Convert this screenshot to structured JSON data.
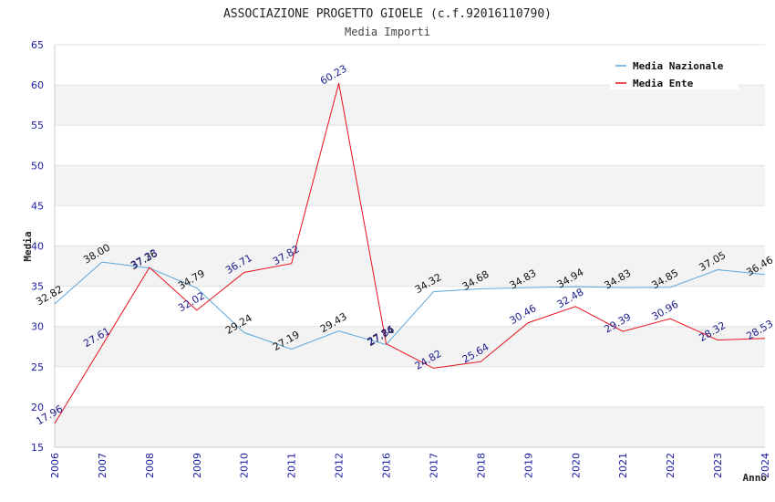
{
  "chart_data": {
    "type": "line",
    "title": "ASSOCIAZIONE PROGETTO GIOELE (c.f.92016110790)",
    "subtitle": "Media Importi",
    "ylabel": "Media",
    "xlabel": "Anno",
    "ylim": [
      15,
      65
    ],
    "yticks": [
      15,
      20,
      25,
      30,
      35,
      40,
      45,
      50,
      55,
      60,
      65
    ],
    "categories": [
      "2006",
      "2007",
      "2008",
      "2009",
      "2010",
      "2011",
      "2012",
      "2016",
      "2017",
      "2018",
      "2019",
      "2020",
      "2021",
      "2022",
      "2023",
      "2024"
    ],
    "legend_position": "top-right",
    "series": [
      {
        "name": "Media Nazionale",
        "color": "#5aa5dc",
        "values": [
          32.82,
          38.0,
          37.26,
          34.79,
          29.24,
          27.19,
          29.43,
          27.74,
          34.32,
          34.68,
          34.83,
          34.94,
          34.83,
          34.85,
          37.05,
          36.46
        ],
        "labels": [
          "32.82",
          "38.00",
          "37.26",
          "34.79",
          "29.24",
          "27.19",
          "29.43",
          "27.74",
          "34.32",
          "34.68",
          "34.83",
          "34.94",
          "34.83",
          "34.85",
          "37.05",
          "36.46"
        ]
      },
      {
        "name": "Media Ente",
        "color": "#e8101c",
        "values": [
          17.96,
          27.61,
          37.33,
          32.02,
          36.71,
          37.82,
          60.23,
          27.86,
          24.82,
          25.64,
          30.46,
          32.48,
          29.39,
          30.96,
          28.32,
          28.53
        ],
        "labels": [
          "17.96",
          "27.61",
          "37.33",
          "32.02",
          "36.71",
          "37.82",
          "60.23",
          "27.86",
          "24.82",
          "25.64",
          "30.46",
          "32.48",
          "29.39",
          "30.96",
          "28.32",
          "28.53"
        ]
      }
    ]
  }
}
